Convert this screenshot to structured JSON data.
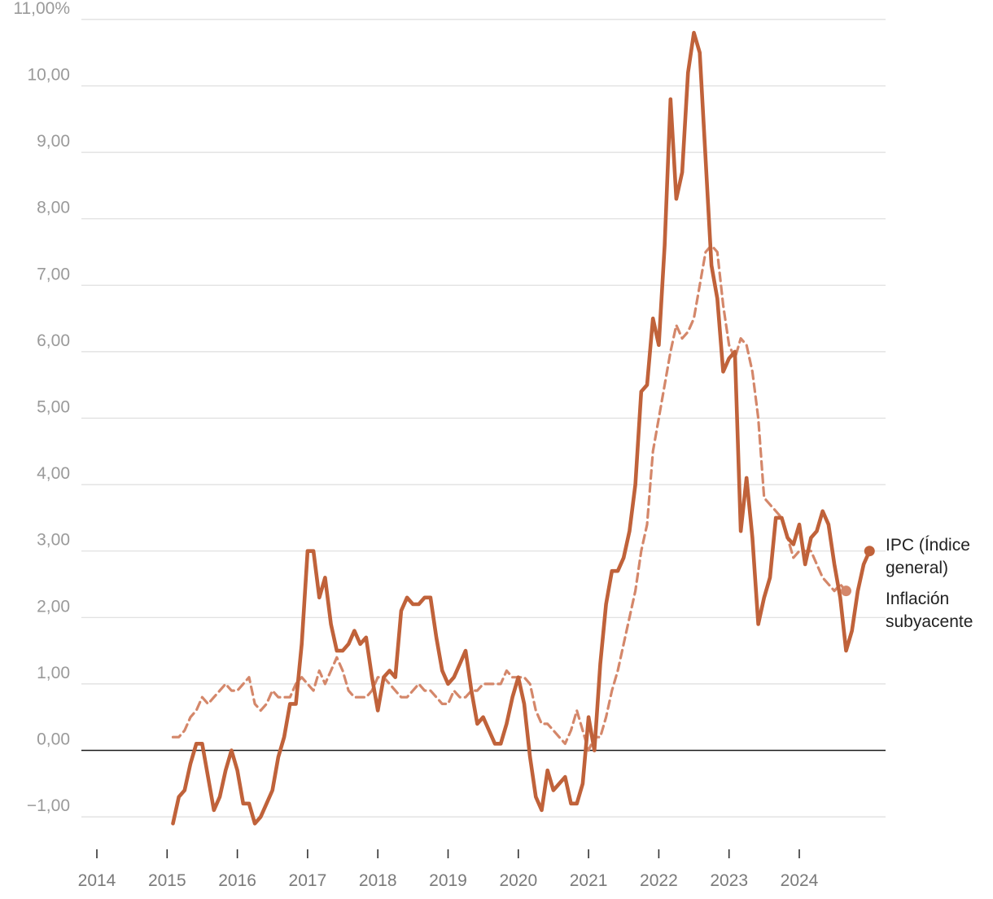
{
  "chart_data": {
    "type": "line",
    "title": "",
    "xlabel": "",
    "ylabel": "",
    "xlim": [
      2014.0,
      2025.3
    ],
    "ylim": [
      -1.2,
      11.0
    ],
    "grid": true,
    "legend": "right-end-labels",
    "y_ticks": [
      {
        "value": 11,
        "label": "11,00%"
      },
      {
        "value": 10,
        "label": "10,00"
      },
      {
        "value": 9,
        "label": "9,00"
      },
      {
        "value": 8,
        "label": "8,00"
      },
      {
        "value": 7,
        "label": "7,00"
      },
      {
        "value": 6,
        "label": "6,00"
      },
      {
        "value": 5,
        "label": "5,00"
      },
      {
        "value": 4,
        "label": "4,00"
      },
      {
        "value": 3,
        "label": "3,00"
      },
      {
        "value": 2,
        "label": "2,00"
      },
      {
        "value": 1,
        "label": "1,00"
      },
      {
        "value": 0,
        "label": "0,00"
      },
      {
        "value": -1,
        "label": "−1,00"
      }
    ],
    "x_ticks": [
      "2014",
      "2015",
      "2016",
      "2017",
      "2018",
      "2019",
      "2020",
      "2021",
      "2022",
      "2023",
      "2024"
    ],
    "series": [
      {
        "name": "IPC (Índice general)",
        "label_lines": [
          "IPC (Índice",
          "general)"
        ],
        "color": "#c0623a",
        "style": "solid",
        "x_start": 2015.083,
        "values": [
          -1.1,
          -0.7,
          -0.6,
          -0.2,
          0.1,
          0.1,
          -0.4,
          -0.9,
          -0.7,
          -0.3,
          0.0,
          -0.3,
          -0.8,
          -0.8,
          -1.1,
          -1.0,
          -0.8,
          -0.6,
          -0.1,
          0.2,
          0.7,
          0.7,
          1.6,
          3.0,
          3.0,
          2.3,
          2.6,
          1.9,
          1.5,
          1.5,
          1.6,
          1.8,
          1.6,
          1.7,
          1.1,
          0.6,
          1.1,
          1.2,
          1.1,
          2.1,
          2.3,
          2.2,
          2.2,
          2.3,
          2.3,
          1.7,
          1.2,
          1.0,
          1.1,
          1.3,
          1.5,
          0.9,
          0.4,
          0.5,
          0.3,
          0.1,
          0.1,
          0.4,
          0.8,
          1.1,
          0.7,
          -0.1,
          -0.7,
          -0.9,
          -0.3,
          -0.6,
          -0.5,
          -0.4,
          -0.8,
          -0.8,
          -0.5,
          0.5,
          0.0,
          1.3,
          2.2,
          2.7,
          2.7,
          2.9,
          3.3,
          4.0,
          5.4,
          5.5,
          6.5,
          6.1,
          7.6,
          9.8,
          8.3,
          8.7,
          10.2,
          10.8,
          10.5,
          8.9,
          7.3,
          6.8,
          5.7,
          5.9,
          6.0,
          3.3,
          4.1,
          3.2,
          1.9,
          2.3,
          2.6,
          3.5,
          3.5,
          3.2,
          3.1,
          3.4,
          2.8,
          3.2,
          3.3,
          3.6,
          3.4,
          2.8,
          2.3,
          1.5,
          1.8,
          2.4,
          2.8,
          3.0
        ]
      },
      {
        "name": "Inflación subyacente",
        "label_lines": [
          "Inflación",
          "subyacente"
        ],
        "color": "#d4876a",
        "style": "dashed",
        "x_start": 2015.083,
        "values": [
          0.2,
          0.2,
          0.3,
          0.5,
          0.6,
          0.8,
          0.7,
          0.8,
          0.9,
          1.0,
          0.9,
          0.9,
          1.0,
          1.1,
          0.7,
          0.6,
          0.7,
          0.9,
          0.8,
          0.8,
          0.8,
          1.0,
          1.1,
          1.0,
          0.9,
          1.2,
          1.0,
          1.2,
          1.4,
          1.2,
          0.9,
          0.8,
          0.8,
          0.8,
          0.9,
          1.1,
          1.1,
          1.0,
          0.9,
          0.8,
          0.8,
          0.9,
          1.0,
          0.9,
          0.9,
          0.8,
          0.7,
          0.7,
          0.9,
          0.8,
          0.8,
          0.9,
          0.9,
          1.0,
          1.0,
          1.0,
          1.0,
          1.2,
          1.1,
          1.1,
          1.1,
          1.0,
          0.6,
          0.4,
          0.4,
          0.3,
          0.2,
          0.1,
          0.3,
          0.6,
          0.3,
          0.0,
          0.2,
          0.2,
          0.5,
          0.9,
          1.2,
          1.6,
          2.0,
          2.4,
          3.0,
          3.4,
          4.5,
          5.0,
          5.5,
          6.0,
          6.4,
          6.2,
          6.3,
          6.5,
          7.0,
          7.5,
          7.6,
          7.5,
          6.7,
          6.1,
          5.9,
          6.2,
          6.1,
          5.7,
          5.0,
          3.8,
          3.7,
          3.6,
          3.5,
          3.2,
          2.9,
          3.0,
          3.0,
          3.0,
          2.8,
          2.6,
          2.5,
          2.4,
          2.5,
          2.4
        ]
      }
    ]
  }
}
